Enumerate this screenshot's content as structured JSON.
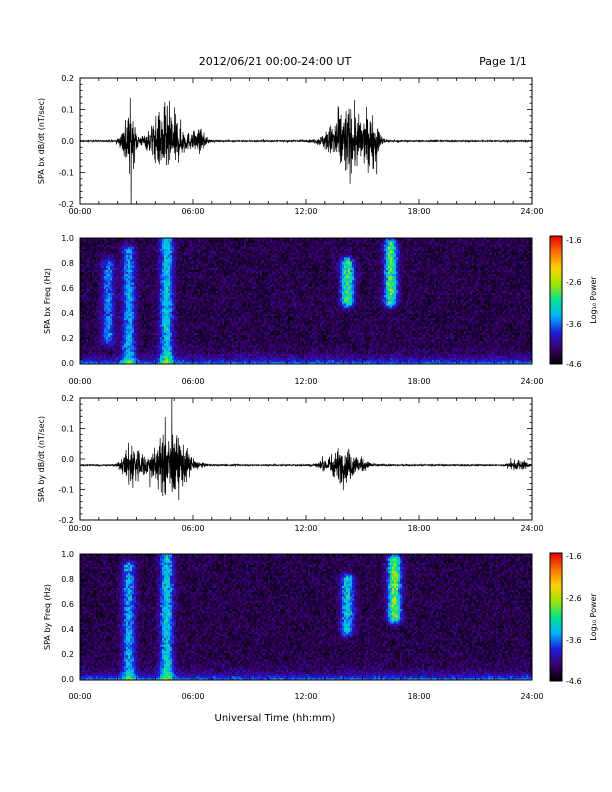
{
  "header": {
    "title": "2012/06/21  00:00-24:00 UT",
    "page": "Page 1/1"
  },
  "xlabel": "Universal Time (hh:mm)",
  "xticks": [
    "00:00",
    "06:00",
    "12:00",
    "18:00",
    "24:00"
  ],
  "colors": {
    "trace": "#000000",
    "colorbar_stops": [
      "#000000",
      "#3a0070",
      "#1e1ee0",
      "#00b4ff",
      "#00e68c",
      "#a0e600",
      "#ffd200",
      "#ff6e00",
      "#e60000"
    ]
  },
  "colorbar": {
    "label": "Log₁₀ Power",
    "ticks": [
      "-1.6",
      "-2.6",
      "-3.6",
      "-4.6"
    ],
    "range": [
      -4.6,
      -1.6
    ]
  },
  "chart_data": [
    {
      "type": "line",
      "ylabel": "SPA bx dB/dt (nT/sec)",
      "x_range_hours": [
        0,
        24
      ],
      "ylim": [
        -0.2,
        0.2
      ],
      "yticks": [
        "0.2",
        "0.1",
        "0.0",
        "-0.1",
        "-0.2"
      ],
      "baseline": 0.0,
      "activity_bursts": [
        {
          "center_h": 2.6,
          "width_h": 0.35,
          "amplitude": 0.2
        },
        {
          "center_h": 4.6,
          "width_h": 0.9,
          "amplitude": 0.2
        },
        {
          "center_h": 6.3,
          "width_h": 0.4,
          "amplitude": 0.06
        },
        {
          "center_h": 14.2,
          "width_h": 1.0,
          "amplitude": 0.2
        },
        {
          "center_h": 15.5,
          "width_h": 0.4,
          "amplitude": 0.12
        }
      ]
    },
    {
      "type": "heatmap",
      "ylabel": "SPA bx Freq (Hz)",
      "x_range_hours": [
        0,
        24
      ],
      "ylim": [
        0,
        1.0
      ],
      "yticks": [
        "1.0",
        "0.8",
        "0.6",
        "0.4",
        "0.2",
        "0.0"
      ],
      "value_range_log10": [
        -4.6,
        -1.6
      ],
      "bright_regions": [
        {
          "time_h": 1.5,
          "freq_hz": [
            0.2,
            0.8
          ],
          "level": -3.4
        },
        {
          "time_h": 2.6,
          "freq_hz": [
            0.0,
            0.9
          ],
          "level": -3.2
        },
        {
          "time_h": 4.6,
          "freq_hz": [
            0.0,
            1.0
          ],
          "level": -3.0
        },
        {
          "time_h": 14.2,
          "freq_hz": [
            0.5,
            0.8
          ],
          "level": -2.6
        },
        {
          "time_h": 16.5,
          "freq_hz": [
            0.5,
            0.95
          ],
          "level": -2.6
        }
      ]
    },
    {
      "type": "line",
      "ylabel": "SPA by dB/dt (nT/sec)",
      "x_range_hours": [
        0,
        24
      ],
      "ylim": [
        -0.2,
        0.2
      ],
      "yticks": [
        "0.2",
        "0.1",
        "0.0",
        "-0.1",
        "-0.2"
      ],
      "baseline": -0.02,
      "activity_bursts": [
        {
          "center_h": 2.8,
          "width_h": 0.5,
          "amplitude": 0.14
        },
        {
          "center_h": 4.8,
          "width_h": 1.0,
          "amplitude": 0.2
        },
        {
          "center_h": 14.0,
          "width_h": 1.0,
          "amplitude": 0.1
        },
        {
          "center_h": 23.3,
          "width_h": 0.5,
          "amplitude": 0.03
        }
      ]
    },
    {
      "type": "heatmap",
      "ylabel": "SPA by Freq (Hz)",
      "x_range_hours": [
        0,
        24
      ],
      "ylim": [
        0,
        1.0
      ],
      "yticks": [
        "1.0",
        "0.8",
        "0.6",
        "0.4",
        "0.2",
        "0.0"
      ],
      "value_range_log10": [
        -4.6,
        -1.6
      ],
      "bright_regions": [
        {
          "time_h": 2.6,
          "freq_hz": [
            0.0,
            0.9
          ],
          "level": -3.2
        },
        {
          "time_h": 4.6,
          "freq_hz": [
            0.0,
            1.0
          ],
          "level": -3.0
        },
        {
          "time_h": 14.2,
          "freq_hz": [
            0.4,
            0.8
          ],
          "level": -3.0
        },
        {
          "time_h": 16.7,
          "freq_hz": [
            0.5,
            0.95
          ],
          "level": -2.4
        }
      ]
    }
  ]
}
